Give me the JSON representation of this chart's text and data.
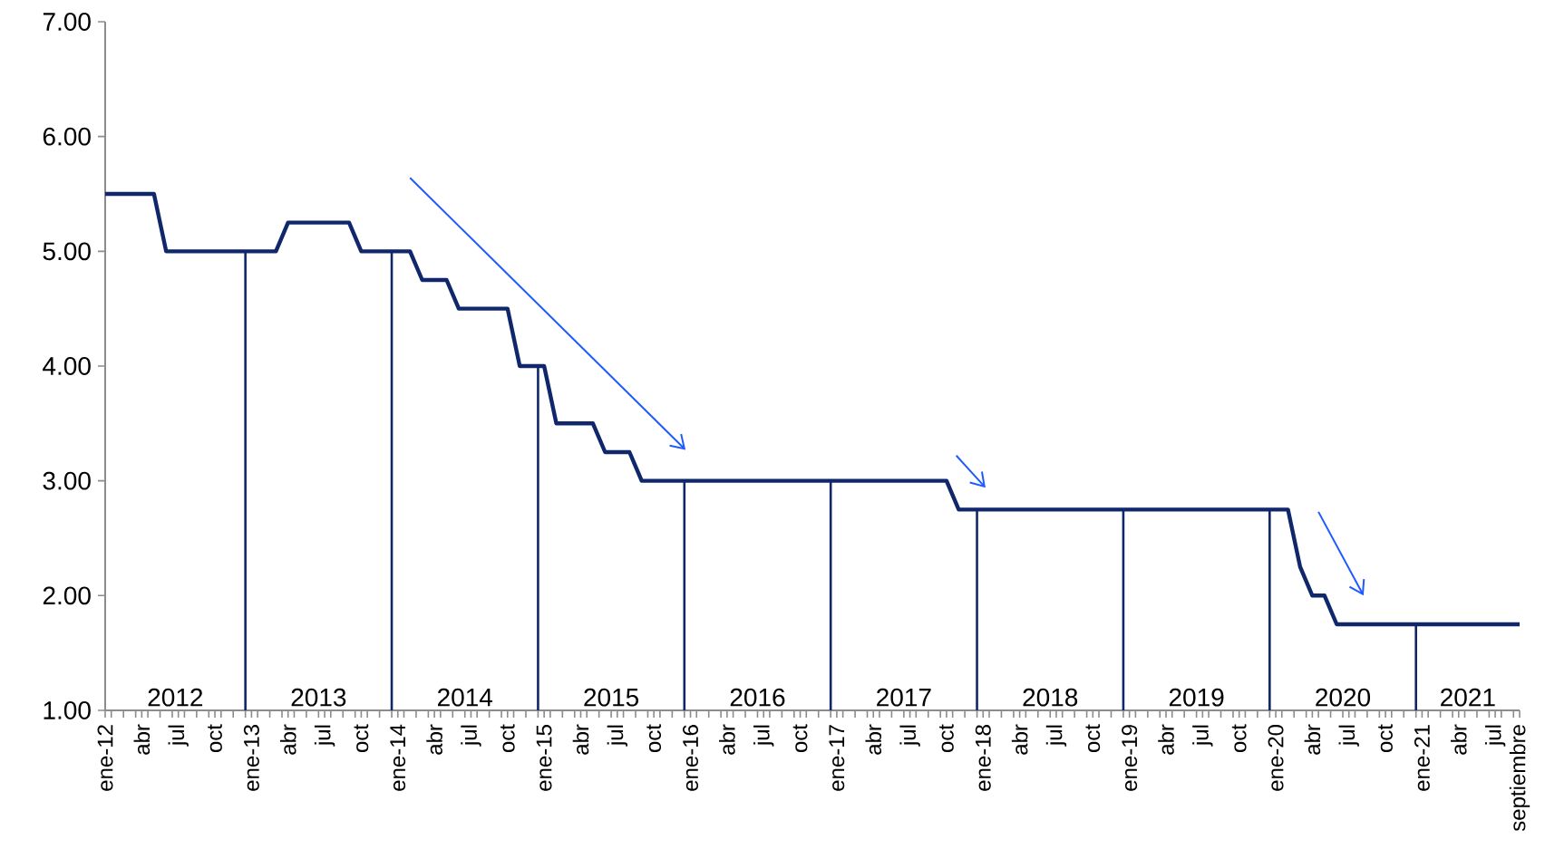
{
  "chart_data": {
    "type": "line",
    "marker": "none",
    "line_style": "solid",
    "x": [
      "2012-01",
      "2012-02",
      "2012-03",
      "2012-04",
      "2012-05",
      "2012-06",
      "2012-07",
      "2012-08",
      "2012-09",
      "2012-10",
      "2012-11",
      "2012-12",
      "2013-01",
      "2013-02",
      "2013-03",
      "2013-04",
      "2013-05",
      "2013-06",
      "2013-07",
      "2013-08",
      "2013-09",
      "2013-10",
      "2013-11",
      "2013-12",
      "2014-01",
      "2014-02",
      "2014-03",
      "2014-04",
      "2014-05",
      "2014-06",
      "2014-07",
      "2014-08",
      "2014-09",
      "2014-10",
      "2014-11",
      "2014-12",
      "2015-01",
      "2015-02",
      "2015-03",
      "2015-04",
      "2015-05",
      "2015-06",
      "2015-07",
      "2015-08",
      "2015-09",
      "2015-10",
      "2015-11",
      "2015-12",
      "2016-01",
      "2016-02",
      "2016-03",
      "2016-04",
      "2016-05",
      "2016-06",
      "2016-07",
      "2016-08",
      "2016-09",
      "2016-10",
      "2016-11",
      "2016-12",
      "2017-01",
      "2017-02",
      "2017-03",
      "2017-04",
      "2017-05",
      "2017-06",
      "2017-07",
      "2017-08",
      "2017-09",
      "2017-10",
      "2017-11",
      "2017-12",
      "2018-01",
      "2018-02",
      "2018-03",
      "2018-04",
      "2018-05",
      "2018-06",
      "2018-07",
      "2018-08",
      "2018-09",
      "2018-10",
      "2018-11",
      "2018-12",
      "2019-01",
      "2019-02",
      "2019-03",
      "2019-04",
      "2019-05",
      "2019-06",
      "2019-07",
      "2019-08",
      "2019-09",
      "2019-10",
      "2019-11",
      "2019-12",
      "2020-01",
      "2020-02",
      "2020-03",
      "2020-04",
      "2020-05",
      "2020-06",
      "2020-07",
      "2020-08",
      "2020-09",
      "2020-10",
      "2020-11",
      "2020-12",
      "2021-01",
      "2021-02",
      "2021-03",
      "2021-04",
      "2021-05",
      "2021-06",
      "2021-07",
      "2021-08",
      "2021-09"
    ],
    "series": [
      {
        "color": "#10286b",
        "values": [
          5.5,
          5.5,
          5.5,
          5.5,
          5.5,
          5.0,
          5.0,
          5.0,
          5.0,
          5.0,
          5.0,
          5.0,
          5.0,
          5.0,
          5.0,
          5.25,
          5.25,
          5.25,
          5.25,
          5.25,
          5.25,
          5.0,
          5.0,
          5.0,
          5.0,
          5.0,
          4.75,
          4.75,
          4.75,
          4.5,
          4.5,
          4.5,
          4.5,
          4.5,
          4.0,
          4.0,
          4.0,
          3.5,
          3.5,
          3.5,
          3.5,
          3.25,
          3.25,
          3.25,
          3.0,
          3.0,
          3.0,
          3.0,
          3.0,
          3.0,
          3.0,
          3.0,
          3.0,
          3.0,
          3.0,
          3.0,
          3.0,
          3.0,
          3.0,
          3.0,
          3.0,
          3.0,
          3.0,
          3.0,
          3.0,
          3.0,
          3.0,
          3.0,
          3.0,
          3.0,
          2.75,
          2.75,
          2.75,
          2.75,
          2.75,
          2.75,
          2.75,
          2.75,
          2.75,
          2.75,
          2.75,
          2.75,
          2.75,
          2.75,
          2.75,
          2.75,
          2.75,
          2.75,
          2.75,
          2.75,
          2.75,
          2.75,
          2.75,
          2.75,
          2.75,
          2.75,
          2.75,
          2.75,
          2.25,
          2.0,
          2.0,
          1.75,
          1.75,
          1.75,
          1.75,
          1.75,
          1.75,
          1.75,
          1.75,
          1.75,
          1.75,
          1.75,
          1.75,
          1.75,
          1.75,
          1.75,
          1.75
        ]
      }
    ],
    "xlim": [
      "2012-01",
      "2021-09"
    ],
    "xticks": [
      {
        "value": "2012-01",
        "label": "ene-12"
      },
      {
        "value": "2012-04",
        "label": "abr"
      },
      {
        "value": "2012-07",
        "label": "jul"
      },
      {
        "value": "2012-10",
        "label": "oct"
      },
      {
        "value": "2013-01",
        "label": "ene-13"
      },
      {
        "value": "2013-04",
        "label": "abr"
      },
      {
        "value": "2013-07",
        "label": "jul"
      },
      {
        "value": "2013-10",
        "label": "oct"
      },
      {
        "value": "2014-01",
        "label": "ene-14"
      },
      {
        "value": "2014-04",
        "label": "abr"
      },
      {
        "value": "2014-07",
        "label": "jul"
      },
      {
        "value": "2014-10",
        "label": "oct"
      },
      {
        "value": "2015-01",
        "label": "ene-15"
      },
      {
        "value": "2015-04",
        "label": "abr"
      },
      {
        "value": "2015-07",
        "label": "jul"
      },
      {
        "value": "2015-10",
        "label": "oct"
      },
      {
        "value": "2016-01",
        "label": "ene-16"
      },
      {
        "value": "2016-04",
        "label": "abr"
      },
      {
        "value": "2016-07",
        "label": "jul"
      },
      {
        "value": "2016-10",
        "label": "oct"
      },
      {
        "value": "2017-01",
        "label": "ene-17"
      },
      {
        "value": "2017-04",
        "label": "abr"
      },
      {
        "value": "2017-07",
        "label": "jul"
      },
      {
        "value": "2017-10",
        "label": "oct"
      },
      {
        "value": "2018-01",
        "label": "ene-18"
      },
      {
        "value": "2018-04",
        "label": "abr"
      },
      {
        "value": "2018-07",
        "label": "jul"
      },
      {
        "value": "2018-10",
        "label": "oct"
      },
      {
        "value": "2019-01",
        "label": "ene-19"
      },
      {
        "value": "2019-04",
        "label": "abr"
      },
      {
        "value": "2019-07",
        "label": "jul"
      },
      {
        "value": "2019-10",
        "label": "oct"
      },
      {
        "value": "2020-01",
        "label": "ene-20"
      },
      {
        "value": "2020-04",
        "label": "abr"
      },
      {
        "value": "2020-07",
        "label": "jul"
      },
      {
        "value": "2020-10",
        "label": "oct"
      },
      {
        "value": "2021-01",
        "label": "ene-21"
      },
      {
        "value": "2021-04",
        "label": "abr"
      },
      {
        "value": "2021-07",
        "label": "jul"
      },
      {
        "value": "2021-09",
        "label": "septiembre"
      }
    ],
    "ylim": [
      1,
      7
    ],
    "yticks": [
      {
        "value": 1,
        "label": "1.00"
      },
      {
        "value": 2,
        "label": "2.00"
      },
      {
        "value": 3,
        "label": "3.00"
      },
      {
        "value": 4,
        "label": "4.00"
      },
      {
        "value": 5,
        "label": "5.00"
      },
      {
        "value": 6,
        "label": "6.00"
      },
      {
        "value": 7,
        "label": "7.00"
      }
    ],
    "ref_lines": [
      {
        "axis": "x",
        "value": "2012-12-16",
        "color": "#10286b"
      },
      {
        "axis": "x",
        "value": "2013-12-16",
        "color": "#10286b"
      },
      {
        "axis": "x",
        "value": "2014-12-16",
        "color": "#10286b"
      },
      {
        "axis": "x",
        "value": "2015-12-16",
        "color": "#10286b"
      },
      {
        "axis": "x",
        "value": "2016-12-16",
        "color": "#10286b"
      },
      {
        "axis": "x",
        "value": "2017-12-16",
        "color": "#10286b"
      },
      {
        "axis": "x",
        "value": "2018-12-16",
        "color": "#10286b"
      },
      {
        "axis": "x",
        "value": "2019-12-16",
        "color": "#10286b"
      },
      {
        "axis": "x",
        "value": "2020-12-16",
        "color": "#10286b"
      }
    ],
    "annotations": [
      "2012",
      "2013",
      "2014",
      "2015",
      "2016",
      "2017",
      "2018",
      "2019",
      "2020",
      "2021"
    ]
  }
}
